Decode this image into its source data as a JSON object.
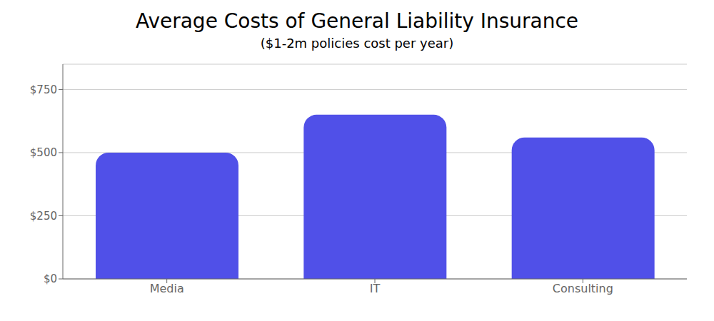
{
  "chart_data": {
    "type": "bar",
    "title": "Average Costs of General Liability Insurance",
    "subtitle": "($1-2m policies cost per year)",
    "categories": [
      "Media",
      "IT",
      "Consulting"
    ],
    "values": [
      500,
      650,
      560
    ],
    "color": "#5050E8",
    "ylim": [
      0,
      850
    ],
    "yticks": [
      {
        "value": 0,
        "label": "$0"
      },
      {
        "value": 250,
        "label": "$250"
      },
      {
        "value": 500,
        "label": "$500"
      },
      {
        "value": 750,
        "label": "$750"
      }
    ],
    "grid": true
  }
}
